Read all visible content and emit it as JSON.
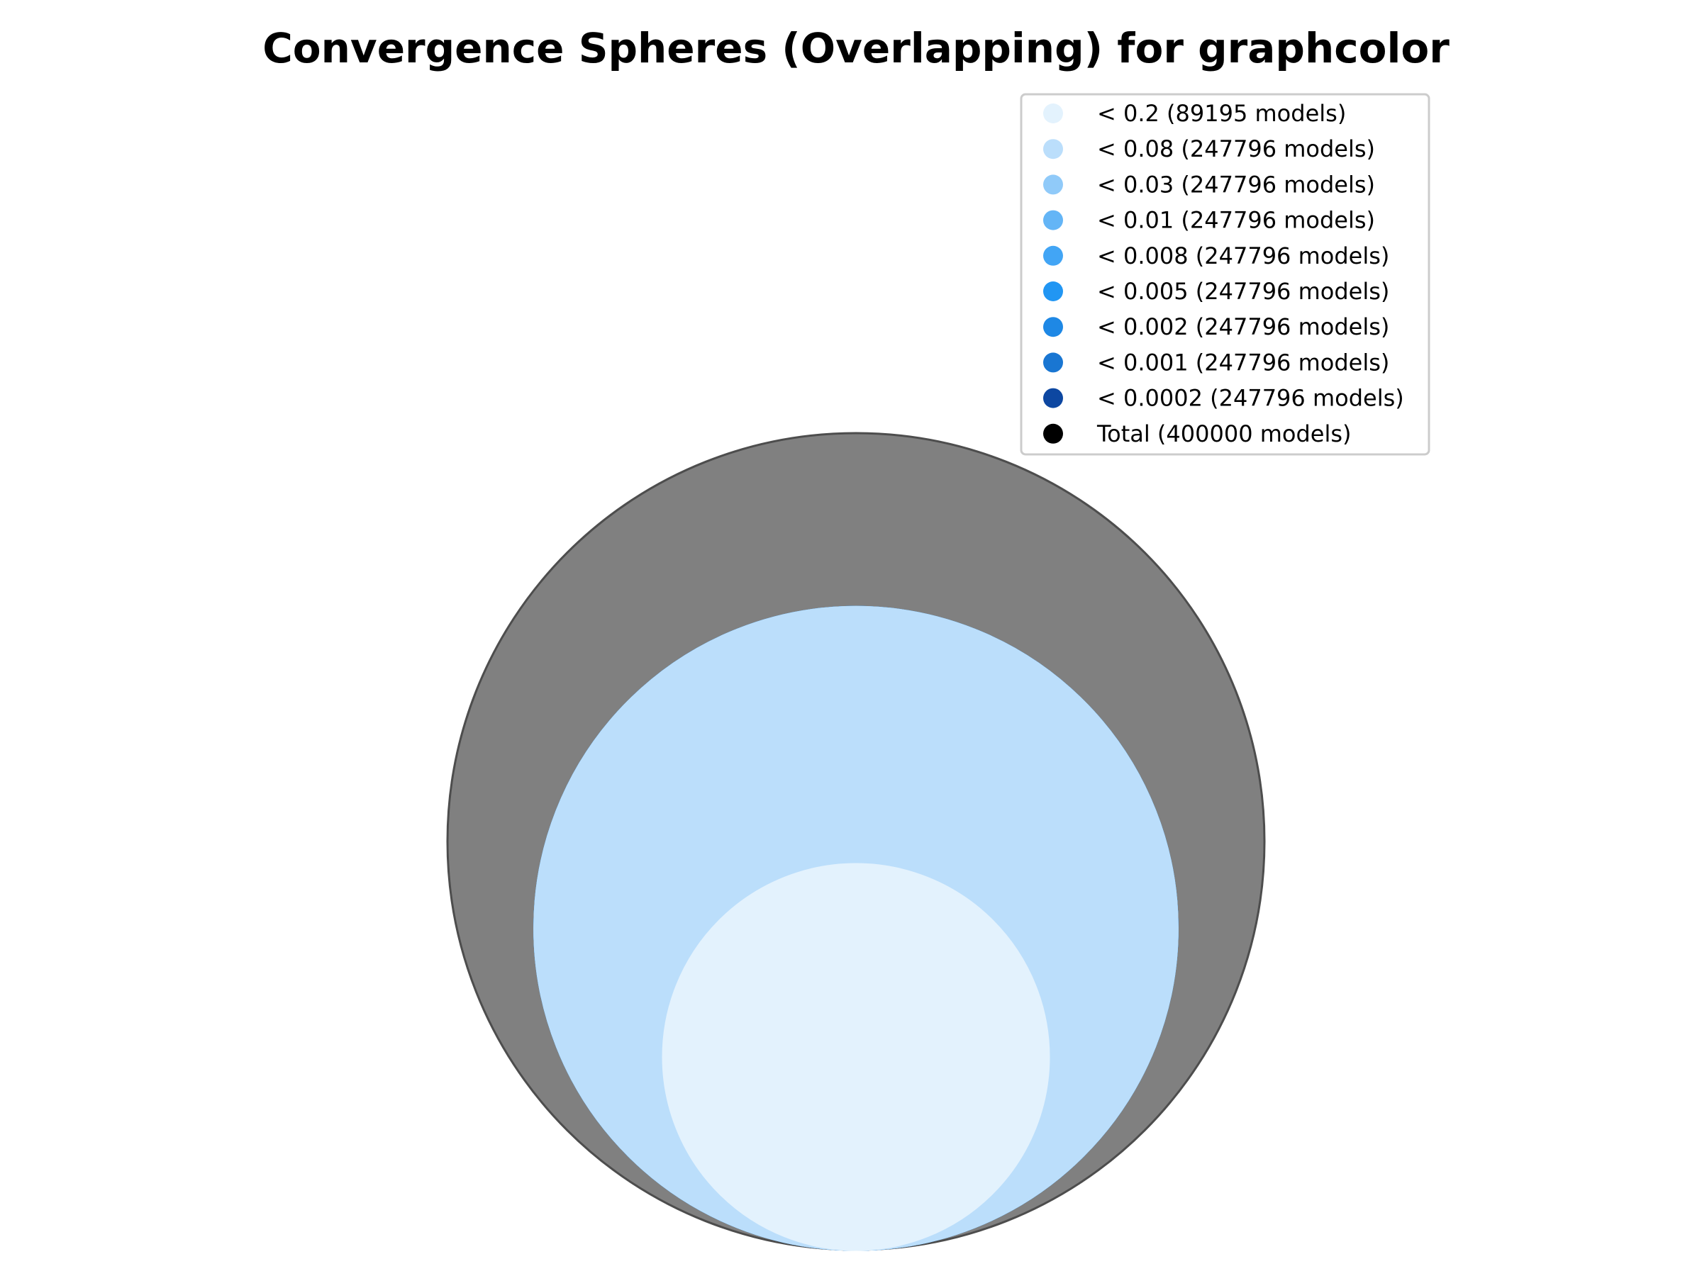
{
  "chart_data": {
    "type": "bubble",
    "title": "Convergence Spheres (Overlapping) for graphcolor",
    "total": {
      "label": "Total (400000 models)",
      "models": 400000,
      "color": "#000000",
      "fill": "#808080"
    },
    "series": [
      {
        "name": "< 0.2 (89195 models)",
        "threshold": 0.2,
        "models": 89195,
        "color": "#e3f2fd"
      },
      {
        "name": "< 0.08 (247796 models)",
        "threshold": 0.08,
        "models": 247796,
        "color": "#bbdefb"
      },
      {
        "name": "< 0.03 (247796 models)",
        "threshold": 0.03,
        "models": 247796,
        "color": "#90caf9"
      },
      {
        "name": "< 0.01 (247796 models)",
        "threshold": 0.01,
        "models": 247796,
        "color": "#64b5f6"
      },
      {
        "name": "< 0.008 (247796 models)",
        "threshold": 0.008,
        "models": 247796,
        "color": "#42a5f5"
      },
      {
        "name": "< 0.005 (247796 models)",
        "threshold": 0.005,
        "models": 247796,
        "color": "#2196f3"
      },
      {
        "name": "< 0.002 (247796 models)",
        "threshold": 0.002,
        "models": 247796,
        "color": "#1e88e5"
      },
      {
        "name": "< 0.001 (247796 models)",
        "threshold": 0.001,
        "models": 247796,
        "color": "#1976d2"
      },
      {
        "name": "< 0.0002 (247796 models)",
        "threshold": 0.0002,
        "models": 247796,
        "color": "#0d47a1"
      }
    ],
    "legend_position": "top-right",
    "grid": false
  }
}
